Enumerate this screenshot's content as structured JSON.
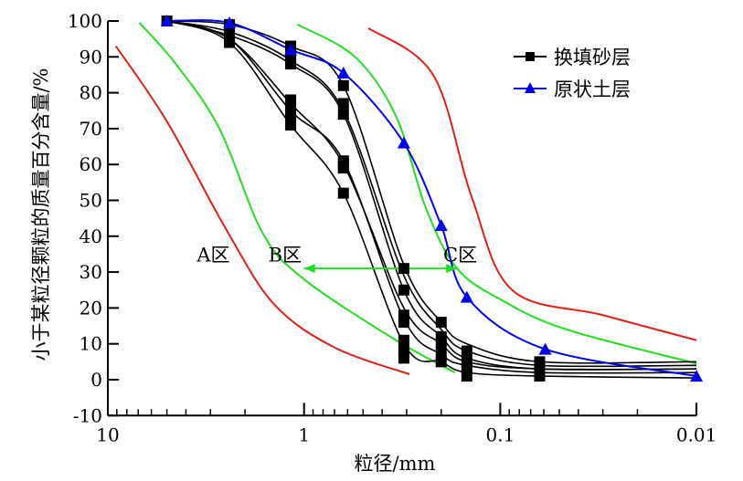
{
  "chart_data": {
    "type": "line",
    "title": "",
    "xlabel": "粒径/mm",
    "ylabel": "小于某粒径颗粒的质量百分含量/%",
    "xscale": "log",
    "xlim": [
      10,
      0.01
    ],
    "ylim": [
      -10,
      100
    ],
    "xticks": [
      "10",
      "1",
      "0.1",
      "0.01"
    ],
    "yticks": [
      "100",
      "90",
      "80",
      "70",
      "60",
      "50",
      "40",
      "30",
      "20",
      "10",
      "0",
      "-10"
    ],
    "legend_position": "top-right",
    "legend": [
      {
        "label": "换填砂层",
        "color": "#000000",
        "marker": "square"
      },
      {
        "label": "原状土层",
        "color": "#0000ee",
        "marker": "triangle"
      }
    ],
    "zone_labels": [
      {
        "text": "A区",
        "x": 2.9,
        "y": 33
      },
      {
        "text": "B区",
        "x": 1.25,
        "y": 33
      },
      {
        "text": "C区",
        "x": 0.16,
        "y": 33
      }
    ],
    "arrow": {
      "from": [
        1.0,
        31
      ],
      "to": [
        0.166,
        31
      ],
      "color": "#22dd22"
    },
    "boundaries": [
      {
        "name": "red-left",
        "color": "#e0201a",
        "points": [
          [
            9.1,
            93
          ],
          [
            5,
            72
          ],
          [
            2.5,
            42
          ],
          [
            1.42,
            21
          ],
          [
            0.7,
            9
          ],
          [
            0.29,
            1.5
          ]
        ]
      },
      {
        "name": "green-left",
        "color": "#22dd22",
        "points": [
          [
            6.9,
            99.5
          ],
          [
            4.5,
            88
          ],
          [
            2.7,
            70
          ],
          [
            1.63,
            41
          ],
          [
            1.0,
            28
          ],
          [
            0.34,
            11
          ],
          [
            0.17,
            2
          ]
        ]
      },
      {
        "name": "green-right",
        "color": "#22dd22",
        "points": [
          [
            1.08,
            99
          ],
          [
            0.55,
            90
          ],
          [
            0.34,
            73.5
          ],
          [
            0.24,
            48
          ],
          [
            0.166,
            31
          ],
          [
            0.097,
            22
          ],
          [
            0.046,
            14
          ],
          [
            0.01,
            4.5
          ]
        ]
      },
      {
        "name": "red-right",
        "color": "#e0201a",
        "points": [
          [
            0.47,
            98
          ],
          [
            0.22,
            85
          ],
          [
            0.14,
            51
          ],
          [
            0.087,
            25
          ],
          [
            0.03,
            18
          ],
          [
            0.01,
            11
          ]
        ]
      }
    ],
    "series": [
      {
        "name": "原状土层",
        "color": "#0000ee",
        "marker": "triangle",
        "points": [
          [
            5,
            100
          ],
          [
            2.4,
            99.5
          ],
          [
            1.17,
            92
          ],
          [
            0.63,
            85.5
          ],
          [
            0.31,
            66
          ],
          [
            0.2,
            43
          ],
          [
            0.148,
            23
          ],
          [
            0.059,
            8.5
          ],
          [
            0.01,
            1
          ]
        ]
      },
      {
        "name": "换填砂层",
        "color": "#000000",
        "marker": "square",
        "curves": [
          [
            [
              5,
              100
            ],
            [
              2.4,
              99
            ],
            [
              1.17,
              93
            ],
            [
              0.63,
              82
            ],
            [
              0.31,
              32
            ],
            [
              0.2,
              16
            ],
            [
              0.148,
              10
            ],
            [
              0.063,
              5
            ],
            [
              0.01,
              5
            ]
          ],
          [
            [
              5,
              100
            ],
            [
              2.4,
              97
            ],
            [
              1.17,
              89
            ],
            [
              0.63,
              75
            ],
            [
              0.31,
              29
            ],
            [
              0.2,
              14
            ],
            [
              0.148,
              8
            ],
            [
              0.063,
              4
            ],
            [
              0.01,
              4
            ]
          ],
          [
            [
              5,
              100
            ],
            [
              2.4,
              96
            ],
            [
              1.17,
              88
            ],
            [
              0.63,
              74
            ],
            [
              0.31,
              25
            ],
            [
              0.2,
              12
            ],
            [
              0.148,
              6
            ],
            [
              0.063,
              3
            ],
            [
              0.01,
              3
            ]
          ],
          [
            [
              5,
              100
            ],
            [
              2.4,
              95
            ],
            [
              1.17,
              77
            ],
            [
              0.63,
              60
            ],
            [
              0.31,
              20
            ],
            [
              0.2,
              10
            ],
            [
              0.148,
              5
            ],
            [
              0.063,
              3
            ],
            [
              0.01,
              3
            ]
          ],
          [
            [
              5,
              100
            ],
            [
              2.4,
              95
            ],
            [
              1.17,
              75
            ],
            [
              0.63,
              61
            ],
            [
              0.31,
              17
            ],
            [
              0.2,
              7
            ],
            [
              0.148,
              4
            ],
            [
              0.063,
              2
            ],
            [
              0.01,
              2
            ]
          ],
          [
            [
              5,
              100
            ],
            [
              2.4,
              94
            ],
            [
              1.17,
              71
            ],
            [
              0.63,
              52
            ],
            [
              0.31,
              10
            ],
            [
              0.2,
              5
            ],
            [
              0.148,
              2
            ],
            [
              0.063,
              1
            ],
            [
              0.01,
              0.5
            ]
          ]
        ],
        "points": [
          [
            5,
            100
          ],
          [
            2.4,
            99
          ],
          [
            2.4,
            97
          ],
          [
            2.4,
            95
          ],
          [
            2.4,
            94
          ],
          [
            1.17,
            93
          ],
          [
            1.17,
            91
          ],
          [
            1.17,
            89
          ],
          [
            1.17,
            88
          ],
          [
            1.17,
            78
          ],
          [
            1.17,
            76
          ],
          [
            1.17,
            74
          ],
          [
            1.17,
            71
          ],
          [
            0.63,
            82
          ],
          [
            0.63,
            77
          ],
          [
            0.63,
            74
          ],
          [
            0.63,
            61
          ],
          [
            0.63,
            60
          ],
          [
            0.63,
            59
          ],
          [
            0.63,
            52
          ],
          [
            0.31,
            31
          ],
          [
            0.31,
            25
          ],
          [
            0.31,
            18
          ],
          [
            0.31,
            16
          ],
          [
            0.31,
            11
          ],
          [
            0.31,
            8
          ],
          [
            0.31,
            6
          ],
          [
            0.2,
            16
          ],
          [
            0.2,
            12
          ],
          [
            0.2,
            10
          ],
          [
            0.2,
            7
          ],
          [
            0.2,
            5
          ],
          [
            0.148,
            8
          ],
          [
            0.148,
            5
          ],
          [
            0.148,
            3
          ],
          [
            0.148,
            1
          ],
          [
            0.063,
            5
          ],
          [
            0.063,
            3
          ],
          [
            0.063,
            2
          ],
          [
            0.063,
            1
          ]
        ]
      }
    ]
  }
}
